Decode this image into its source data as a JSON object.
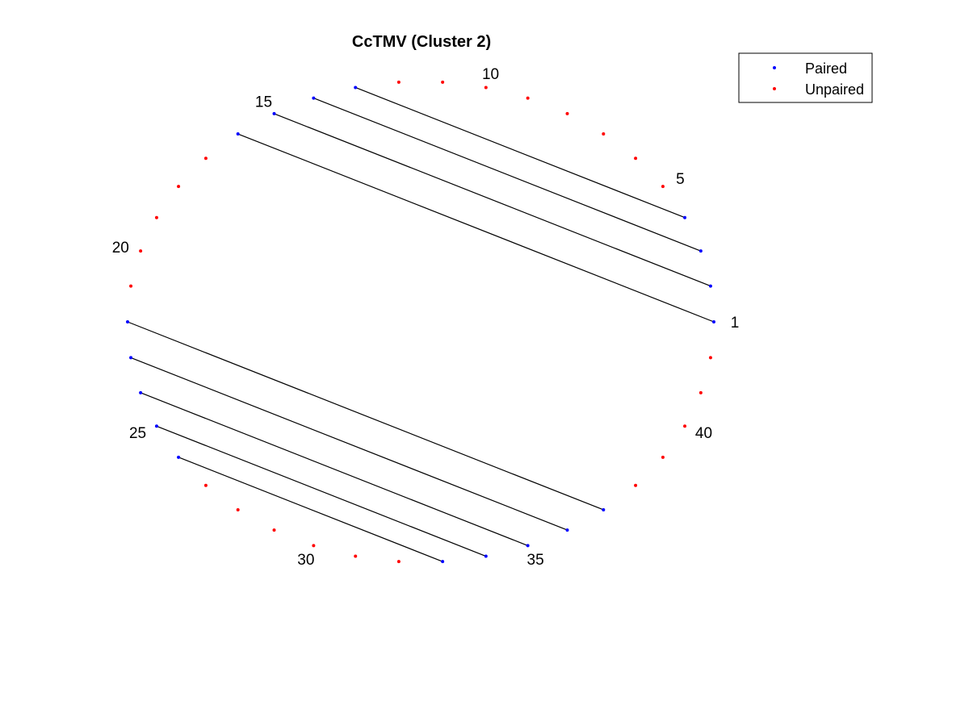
{
  "chart_data": {
    "type": "scatter",
    "title": "CcTMV (Cluster 2)",
    "layout": "circular arc diagram",
    "node_count": 42,
    "node_labels": [
      "1",
      "5",
      "10",
      "15",
      "20",
      "25",
      "30",
      "35",
      "40"
    ],
    "labeled_nodes": [
      1,
      5,
      10,
      15,
      20,
      25,
      30,
      35,
      40
    ],
    "series": [
      {
        "name": "Paired",
        "color": "#0000ff",
        "nodes": [
          1,
          2,
          3,
          4,
          13,
          14,
          15,
          16,
          22,
          23,
          24,
          25,
          26,
          33,
          34,
          35,
          36,
          37
        ]
      },
      {
        "name": "Unpaired",
        "color": "#ff0000",
        "nodes": [
          5,
          6,
          7,
          8,
          9,
          10,
          11,
          12,
          17,
          18,
          19,
          20,
          21,
          27,
          28,
          29,
          30,
          31,
          32,
          38,
          39,
          40,
          41,
          42
        ]
      }
    ],
    "pairs": [
      [
        1,
        16
      ],
      [
        2,
        15
      ],
      [
        3,
        14
      ],
      [
        4,
        13
      ],
      [
        22,
        37
      ],
      [
        23,
        36
      ],
      [
        24,
        35
      ],
      [
        25,
        34
      ],
      [
        26,
        33
      ]
    ],
    "pair_line_color": "#000000",
    "legend_position": "top-right",
    "grid": false
  }
}
